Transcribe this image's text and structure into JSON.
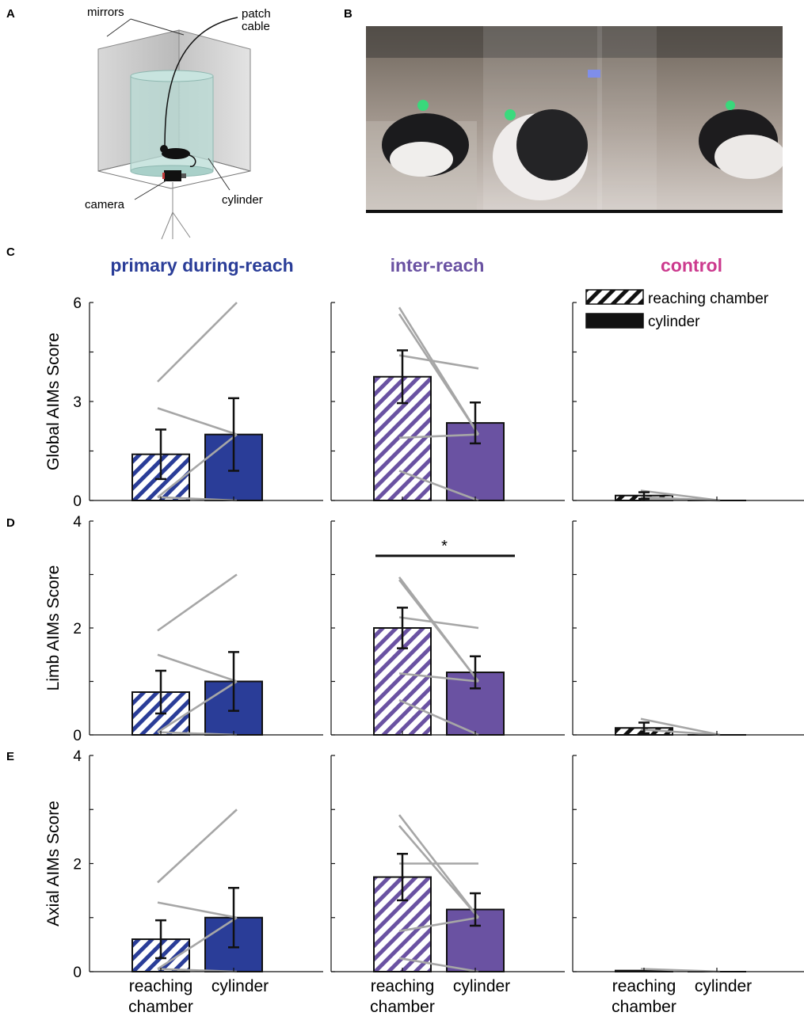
{
  "panel_letters": {
    "a": "A",
    "b": "B",
    "c": "C",
    "d": "D",
    "e": "E"
  },
  "schematic": {
    "mirrors": "mirrors",
    "patch_cable_line1": "patch",
    "patch_cable_line2": "cable",
    "camera": "camera",
    "cylinder": "cylinder"
  },
  "colors": {
    "primary": "#2a3d98",
    "inter": "#6a52a2",
    "control": "#cc3a8e",
    "control_bar": "#111111",
    "lines": "#a6a6a6"
  },
  "legend": {
    "item1": "reaching chamber",
    "item2": "cylinder"
  },
  "significance": "*",
  "chart_data": [
    {
      "type": "bar",
      "row": "C",
      "column_title": "primary during-reach",
      "categories": [
        "reaching\nchamber",
        "cylinder"
      ],
      "values": [
        1.4,
        2.0
      ],
      "errors": [
        0.75,
        1.1
      ],
      "ylabel": "Global AIMs Score",
      "ylim": [
        0,
        6
      ],
      "yticks": [
        0,
        3,
        6
      ],
      "paired": [
        [
          3.6,
          6.0
        ],
        [
          2.8,
          2.0
        ],
        [
          0.1,
          2.0
        ],
        [
          0.1,
          0.0
        ]
      ]
    },
    {
      "type": "bar",
      "row": "C",
      "column_title": "inter-reach",
      "categories": [
        "reaching\nchamber",
        "cylinder"
      ],
      "values": [
        3.75,
        2.35
      ],
      "errors": [
        0.8,
        0.62
      ],
      "ylim": [
        0,
        6
      ],
      "yticks": [
        0,
        3,
        6
      ],
      "paired": [
        [
          5.85,
          2.0
        ],
        [
          5.65,
          2.0
        ],
        [
          4.4,
          4.0
        ],
        [
          1.9,
          2.0
        ],
        [
          0.9,
          0.0
        ]
      ]
    },
    {
      "type": "bar",
      "row": "C",
      "column_title": "control",
      "categories": [
        "reaching\nchamber",
        "cylinder"
      ],
      "values": [
        0.15,
        0.0
      ],
      "errors": [
        0.1,
        0.0
      ],
      "ylim": [
        0,
        6
      ],
      "yticks": [
        0,
        3,
        6
      ],
      "paired": [
        [
          0.3,
          0.0
        ],
        [
          0.1,
          0.0
        ],
        [
          0.05,
          0.0
        ]
      ]
    },
    {
      "type": "bar",
      "row": "D",
      "categories": [
        "reaching\nchamber",
        "cylinder"
      ],
      "values": [
        0.8,
        1.0
      ],
      "errors": [
        0.4,
        0.55
      ],
      "ylabel": "Limb AIMs Score",
      "ylim": [
        0,
        4
      ],
      "yticks": [
        0,
        2,
        4
      ],
      "paired": [
        [
          1.95,
          3.0
        ],
        [
          1.5,
          1.0
        ],
        [
          0.05,
          1.0
        ],
        [
          0.05,
          0.0
        ]
      ]
    },
    {
      "type": "bar",
      "row": "D",
      "categories": [
        "reaching\nchamber",
        "cylinder"
      ],
      "values": [
        2.0,
        1.17
      ],
      "errors": [
        0.38,
        0.3
      ],
      "ylim": [
        0,
        4
      ],
      "yticks": [
        0,
        2,
        4
      ],
      "paired": [
        [
          2.95,
          1.0
        ],
        [
          2.9,
          1.0
        ],
        [
          2.2,
          2.0
        ],
        [
          1.15,
          1.0
        ],
        [
          0.65,
          0.0
        ]
      ],
      "significant": true
    },
    {
      "type": "bar",
      "row": "D",
      "categories": [
        "reaching\nchamber",
        "cylinder"
      ],
      "values": [
        0.13,
        0.0
      ],
      "errors": [
        0.1,
        0.0
      ],
      "ylim": [
        0,
        4
      ],
      "yticks": [
        0,
        2,
        4
      ],
      "paired": [
        [
          0.3,
          0.0
        ],
        [
          0.1,
          0.0
        ]
      ]
    },
    {
      "type": "bar",
      "row": "E",
      "categories": [
        "reaching\nchamber",
        "cylinder"
      ],
      "values": [
        0.6,
        1.0
      ],
      "errors": [
        0.35,
        0.55
      ],
      "ylabel": "Axial AIMs Score",
      "xlabels_shown": true,
      "ylim": [
        0,
        4
      ],
      "yticks": [
        0,
        2,
        4
      ],
      "paired": [
        [
          1.65,
          3.0
        ],
        [
          1.28,
          1.0
        ],
        [
          0.05,
          1.0
        ],
        [
          0.05,
          0.0
        ]
      ]
    },
    {
      "type": "bar",
      "row": "E",
      "categories": [
        "reaching\nchamber",
        "cylinder"
      ],
      "values": [
        1.75,
        1.15
      ],
      "errors": [
        0.43,
        0.3
      ],
      "xlabels_shown": true,
      "ylim": [
        0,
        4
      ],
      "yticks": [
        0,
        2,
        4
      ],
      "paired": [
        [
          2.9,
          1.0
        ],
        [
          2.7,
          1.0
        ],
        [
          2.0,
          2.0
        ],
        [
          0.75,
          1.0
        ],
        [
          0.25,
          0.0
        ]
      ]
    },
    {
      "type": "bar",
      "row": "E",
      "categories": [
        "reaching\nchamber",
        "cylinder"
      ],
      "values": [
        0.02,
        0.0
      ],
      "errors": [
        0.0,
        0.0
      ],
      "xlabels_shown": true,
      "ylim": [
        0,
        4
      ],
      "yticks": [
        0,
        2,
        4
      ],
      "paired": [
        [
          0.05,
          0.0
        ]
      ]
    }
  ]
}
